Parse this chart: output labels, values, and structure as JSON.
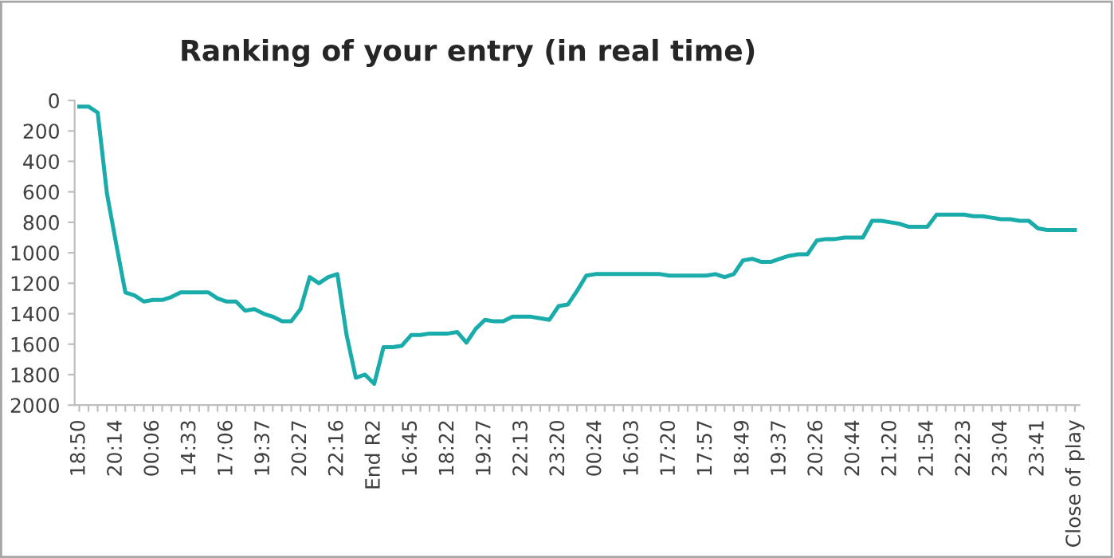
{
  "chart_data": {
    "type": "line",
    "title": "Ranking of your entry (in real time)",
    "categories": [
      "18:50",
      null,
      null,
      null,
      "20:14",
      null,
      null,
      null,
      "00:06",
      null,
      null,
      null,
      "14:33",
      null,
      null,
      null,
      "17:06",
      null,
      null,
      null,
      "19:37",
      null,
      null,
      null,
      "20:27",
      null,
      null,
      null,
      "22:16",
      null,
      null,
      null,
      "End R2",
      null,
      null,
      null,
      "16:45",
      null,
      null,
      null,
      "18:22",
      null,
      null,
      null,
      "19:27",
      null,
      null,
      null,
      "22:13",
      null,
      null,
      null,
      "23:20",
      null,
      null,
      null,
      "00:24",
      null,
      null,
      null,
      "16:03",
      null,
      null,
      null,
      "17:20",
      null,
      null,
      null,
      "17:57",
      null,
      null,
      null,
      "18:49",
      null,
      null,
      null,
      "19:37",
      null,
      null,
      null,
      "20:26",
      null,
      null,
      null,
      "20:44",
      null,
      null,
      null,
      "21:20",
      null,
      null,
      null,
      "21:54",
      null,
      null,
      null,
      "22:23",
      null,
      null,
      null,
      "23:04",
      null,
      null,
      null,
      "23:41",
      null,
      null,
      null,
      "Close of play"
    ],
    "series": [
      {
        "color": "#1aabab",
        "values": [
          40,
          40,
          80,
          610,
          940,
          1260,
          1280,
          1320,
          1310,
          1310,
          1290,
          1260,
          1260,
          1260,
          1260,
          1300,
          1320,
          1320,
          1380,
          1370,
          1400,
          1420,
          1450,
          1450,
          1370,
          1160,
          1200,
          1160,
          1140,
          1540,
          1820,
          1800,
          1860,
          1620,
          1620,
          1610,
          1540,
          1540,
          1530,
          1530,
          1530,
          1520,
          1590,
          1500,
          1440,
          1450,
          1450,
          1420,
          1420,
          1420,
          1430,
          1440,
          1350,
          1340,
          1250,
          1150,
          1140,
          1140,
          1140,
          1140,
          1140,
          1140,
          1140,
          1140,
          1150,
          1150,
          1150,
          1150,
          1150,
          1140,
          1160,
          1140,
          1050,
          1040,
          1060,
          1060,
          1040,
          1020,
          1010,
          1010,
          920,
          910,
          910,
          900,
          900,
          900,
          790,
          790,
          800,
          810,
          830,
          830,
          830,
          750,
          750,
          750,
          750,
          760,
          760,
          770,
          780,
          780,
          790,
          790,
          840,
          850,
          850,
          850,
          850
        ]
      }
    ],
    "ylim": [
      2000,
      0
    ],
    "yticks": [
      0,
      200,
      400,
      600,
      800,
      1000,
      1200,
      1400,
      1600,
      1800,
      2000
    ],
    "grid": false,
    "marker": "none",
    "line_style": "solid"
  }
}
